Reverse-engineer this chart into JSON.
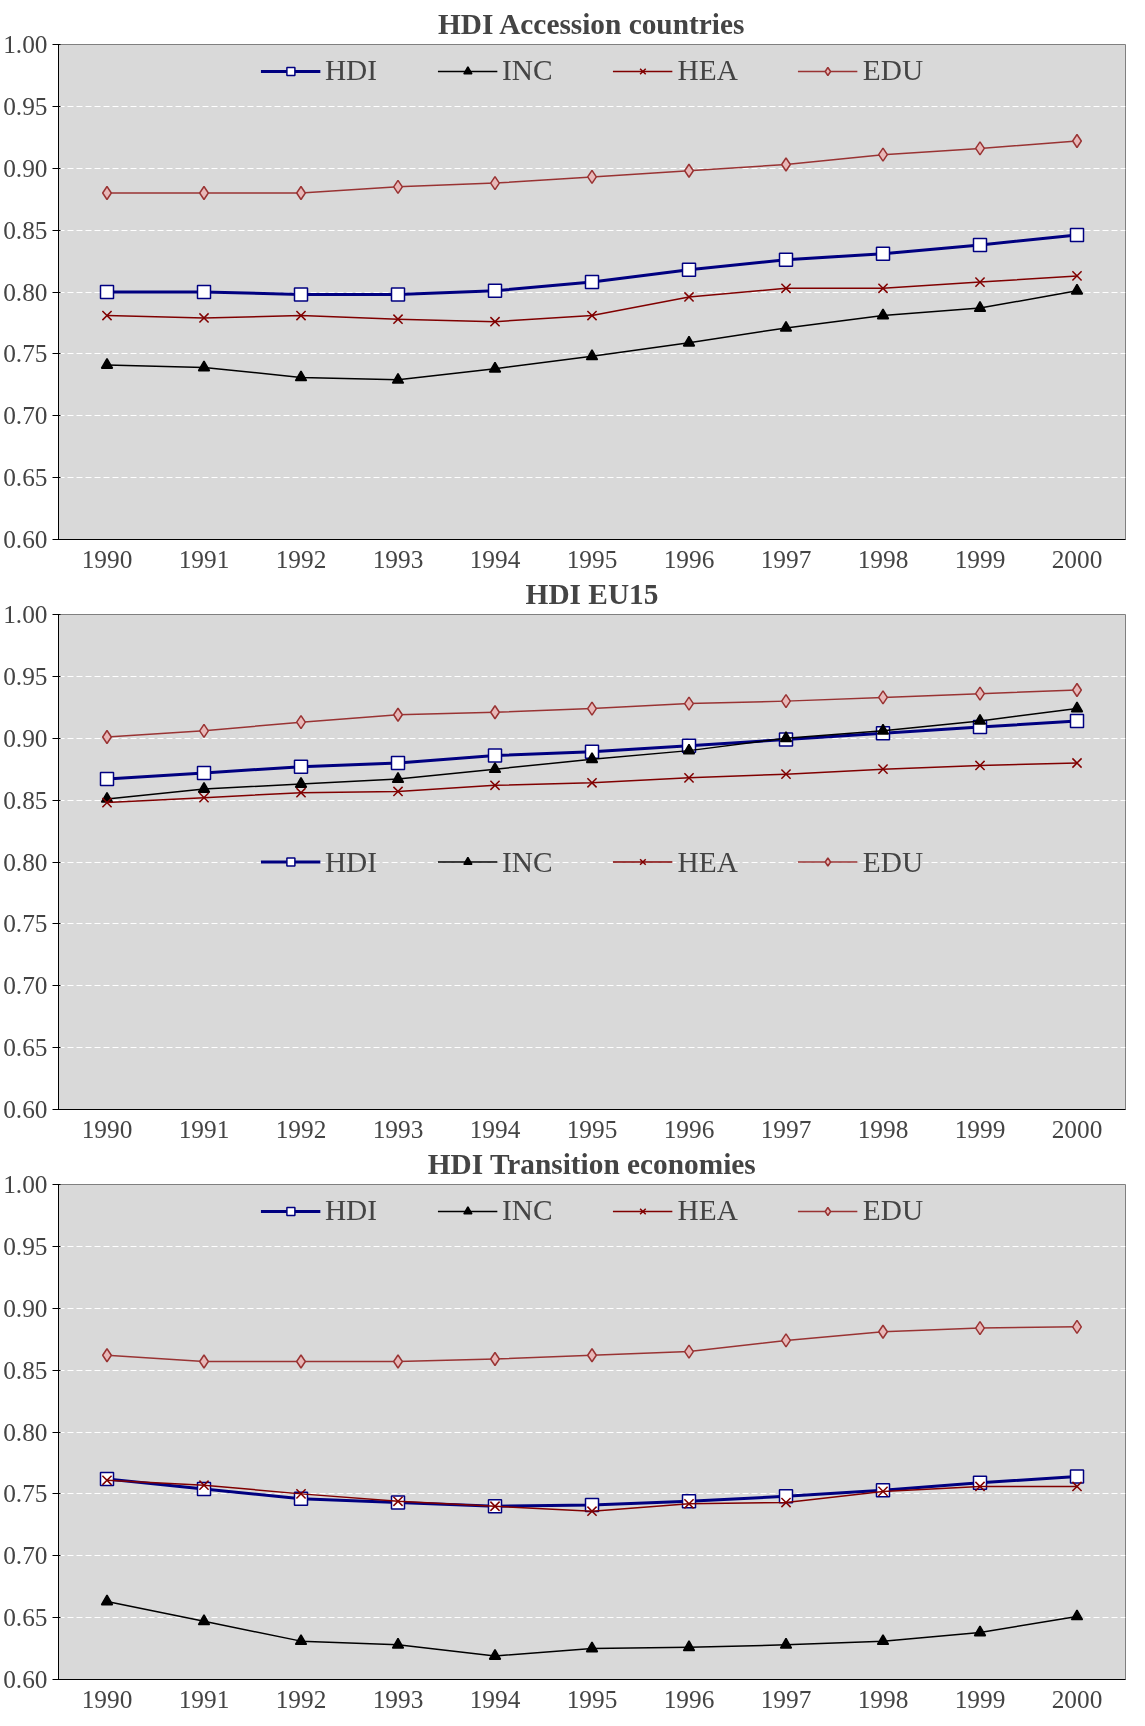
{
  "chart_data": [
    {
      "type": "line",
      "title": "HDI Accession countries",
      "categories": [
        "1990",
        "1991",
        "1992",
        "1993",
        "1994",
        "1995",
        "1996",
        "1997",
        "1998",
        "1999",
        "2000"
      ],
      "ylim": [
        0.6,
        1.0
      ],
      "yticks": [
        {
          "value": 0.6,
          "label": "0.60"
        },
        {
          "value": 0.65,
          "label": "0.65"
        },
        {
          "value": 0.7,
          "label": "0.70"
        },
        {
          "value": 0.75,
          "label": "0.75"
        },
        {
          "value": 0.8,
          "label": "0.80"
        },
        {
          "value": 0.85,
          "label": "0.85"
        },
        {
          "value": 0.9,
          "label": "0.90"
        },
        {
          "value": 0.95,
          "label": "0.95"
        },
        {
          "value": 1.0,
          "label": "1.00"
        }
      ],
      "grid": "y",
      "legend": "top",
      "series": [
        {
          "name": "HDI",
          "color": "#000080",
          "marker": "square",
          "values": [
            0.8,
            0.8,
            0.798,
            0.798,
            0.801,
            0.808,
            0.818,
            0.826,
            0.831,
            0.838,
            0.846
          ]
        },
        {
          "name": "INC",
          "color": "#000000",
          "marker": "triangle",
          "values": [
            0.741,
            0.739,
            0.731,
            0.729,
            0.738,
            0.748,
            0.759,
            0.771,
            0.781,
            0.787,
            0.801
          ]
        },
        {
          "name": "HEA",
          "color": "#800000",
          "marker": "cross",
          "values": [
            0.781,
            0.779,
            0.781,
            0.778,
            0.776,
            0.781,
            0.796,
            0.803,
            0.803,
            0.808,
            0.813
          ]
        },
        {
          "name": "EDU",
          "color": "#993333",
          "marker": "diamond",
          "values": [
            0.88,
            0.88,
            0.88,
            0.885,
            0.888,
            0.893,
            0.898,
            0.903,
            0.911,
            0.916,
            0.922
          ]
        }
      ]
    },
    {
      "type": "line",
      "title": "HDI EU15",
      "categories": [
        "1990",
        "1991",
        "1992",
        "1993",
        "1994",
        "1995",
        "1996",
        "1997",
        "1998",
        "1999",
        "2000"
      ],
      "ylim": [
        0.6,
        1.0
      ],
      "yticks": [
        {
          "value": 0.6,
          "label": "0.60"
        },
        {
          "value": 0.65,
          "label": "0.65"
        },
        {
          "value": 0.7,
          "label": "0.70"
        },
        {
          "value": 0.75,
          "label": "0.75"
        },
        {
          "value": 0.8,
          "label": "0.80"
        },
        {
          "value": 0.85,
          "label": "0.85"
        },
        {
          "value": 0.9,
          "label": "0.90"
        },
        {
          "value": 0.95,
          "label": "0.95"
        },
        {
          "value": 1.0,
          "label": "1.00"
        }
      ],
      "grid": "y",
      "legend": "center",
      "series": [
        {
          "name": "HDI",
          "color": "#000080",
          "marker": "square",
          "values": [
            0.867,
            0.872,
            0.877,
            0.88,
            0.886,
            0.889,
            0.894,
            0.899,
            0.904,
            0.909,
            0.914
          ]
        },
        {
          "name": "INC",
          "color": "#000000",
          "marker": "triangle",
          "values": [
            0.851,
            0.859,
            0.863,
            0.867,
            0.875,
            0.883,
            0.89,
            0.9,
            0.906,
            0.914,
            0.924
          ]
        },
        {
          "name": "HEA",
          "color": "#800000",
          "marker": "cross",
          "values": [
            0.848,
            0.852,
            0.856,
            0.857,
            0.862,
            0.864,
            0.868,
            0.871,
            0.875,
            0.878,
            0.88
          ]
        },
        {
          "name": "EDU",
          "color": "#993333",
          "marker": "diamond",
          "values": [
            0.901,
            0.906,
            0.913,
            0.919,
            0.921,
            0.924,
            0.928,
            0.93,
            0.933,
            0.936,
            0.939
          ]
        }
      ]
    },
    {
      "type": "line",
      "title": "HDI Transition economies",
      "categories": [
        "1990",
        "1991",
        "1992",
        "1993",
        "1994",
        "1995",
        "1996",
        "1997",
        "1998",
        "1999",
        "2000"
      ],
      "ylim": [
        0.6,
        1.0
      ],
      "yticks": [
        {
          "value": 0.6,
          "label": "0.60"
        },
        {
          "value": 0.65,
          "label": "0.65"
        },
        {
          "value": 0.7,
          "label": "0.70"
        },
        {
          "value": 0.75,
          "label": "0.75"
        },
        {
          "value": 0.8,
          "label": "0.80"
        },
        {
          "value": 0.85,
          "label": "0.85"
        },
        {
          "value": 0.9,
          "label": "0.90"
        },
        {
          "value": 0.95,
          "label": "0.95"
        },
        {
          "value": 1.0,
          "label": "1.00"
        }
      ],
      "grid": "y",
      "legend": "top",
      "series": [
        {
          "name": "HDI",
          "color": "#000080",
          "marker": "square",
          "values": [
            0.762,
            0.754,
            0.746,
            0.743,
            0.74,
            0.741,
            0.744,
            0.748,
            0.753,
            0.759,
            0.764
          ]
        },
        {
          "name": "INC",
          "color": "#000000",
          "marker": "triangle",
          "values": [
            0.663,
            0.647,
            0.631,
            0.628,
            0.619,
            0.625,
            0.626,
            0.628,
            0.631,
            0.638,
            0.651
          ]
        },
        {
          "name": "HEA",
          "color": "#800000",
          "marker": "cross",
          "values": [
            0.761,
            0.757,
            0.75,
            0.744,
            0.74,
            0.736,
            0.742,
            0.743,
            0.752,
            0.756,
            0.756
          ]
        },
        {
          "name": "EDU",
          "color": "#993333",
          "marker": "diamond",
          "values": [
            0.862,
            0.857,
            0.857,
            0.857,
            0.859,
            0.862,
            0.865,
            0.874,
            0.881,
            0.884,
            0.885
          ]
        }
      ]
    }
  ]
}
